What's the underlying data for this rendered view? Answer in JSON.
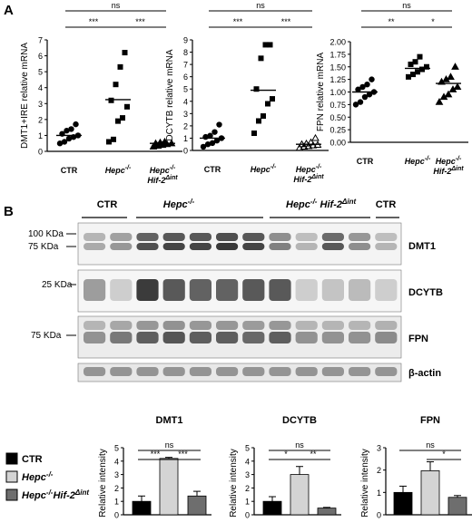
{
  "panels": {
    "a": "A",
    "b": "B"
  },
  "lines": {
    "a": "DMT1+IRE",
    "b": "DCYTB",
    "c": "FPN"
  },
  "chart_data": [
    {
      "type": "scatter",
      "ylabel": "DMT1+IRE relative mRNA",
      "ylim": [
        0,
        7
      ],
      "yticks": [
        "0",
        "1",
        "2",
        "3",
        "4",
        "5",
        "6",
        "7"
      ],
      "groups": [
        {
          "name": "CTR",
          "mean": 1.0,
          "points": [
            0.5,
            0.6,
            0.8,
            0.9,
            1.0,
            1.1,
            1.3,
            1.4,
            1.7
          ],
          "shape": "circle"
        },
        {
          "name": "Hepc-/-",
          "mean": 3.25,
          "points": [
            0.6,
            0.75,
            1.9,
            2.1,
            2.8,
            3.2,
            4.2,
            5.3,
            6.2
          ],
          "shape": "square"
        },
        {
          "name": "Hepc-/-Hif-2Δint",
          "mean": 0.5,
          "points": [
            0.3,
            0.35,
            0.4,
            0.45,
            0.5,
            0.5,
            0.55,
            0.6
          ],
          "shape": "triangle"
        }
      ],
      "significance": [
        {
          "from": 0,
          "to": 2,
          "label": "ns",
          "level": 2
        },
        {
          "from": 0,
          "to": 1,
          "label": "***",
          "level": 1
        },
        {
          "from": 1,
          "to": 2,
          "label": "***",
          "level": 1
        }
      ]
    },
    {
      "type": "scatter",
      "ylabel": "DCYTB relative mRNA",
      "ylim": [
        0,
        9
      ],
      "yticks": [
        "0",
        "1",
        "2",
        "3",
        "4",
        "5",
        "6",
        "7",
        "8",
        "9"
      ],
      "groups": [
        {
          "name": "CTR",
          "mean": 1.0,
          "points": [
            0.3,
            0.5,
            0.6,
            0.8,
            1.0,
            1.1,
            1.2,
            1.5,
            2.1
          ],
          "shape": "circle"
        },
        {
          "name": "Hepc-/-",
          "mean": 4.9,
          "points": [
            1.4,
            2.4,
            2.8,
            3.8,
            4.2,
            5.0,
            7.5,
            8.6,
            8.6
          ],
          "shape": "square"
        },
        {
          "name": "Hepc-/-Hif-2Δint",
          "mean": 0.5,
          "points": [
            0.2,
            0.3,
            0.35,
            0.4,
            0.45,
            0.5,
            0.55,
            0.65,
            1.0
          ],
          "shape": "triangle"
        }
      ],
      "significance": [
        {
          "from": 0,
          "to": 2,
          "label": "ns",
          "level": 2
        },
        {
          "from": 0,
          "to": 1,
          "label": "***",
          "level": 1
        },
        {
          "from": 1,
          "to": 2,
          "label": "***",
          "level": 1
        }
      ]
    },
    {
      "type": "scatter",
      "ylabel": "FPN relative mRNA",
      "ylim": [
        0,
        2.0
      ],
      "yticks": [
        "0.00",
        "0.25",
        "0.50",
        "0.75",
        "1.00",
        "1.25",
        "1.50",
        "1.75",
        "2.00"
      ],
      "groups": [
        {
          "name": "CTR",
          "mean": 1.0,
          "points": [
            0.75,
            0.8,
            0.9,
            0.95,
            1.0,
            1.05,
            1.1,
            1.15,
            1.25
          ],
          "shape": "circle"
        },
        {
          "name": "Hepc-/-",
          "mean": 1.47,
          "points": [
            1.3,
            1.35,
            1.4,
            1.45,
            1.5,
            1.55,
            1.6,
            1.7
          ],
          "shape": "square"
        },
        {
          "name": "Hepc-/-Hif-2Δint",
          "mean": 1.17,
          "points": [
            0.8,
            0.9,
            0.95,
            1.05,
            1.1,
            1.2,
            1.25,
            1.3,
            1.5
          ],
          "shape": "triangle"
        }
      ],
      "significance": [
        {
          "from": 0,
          "to": 2,
          "label": "ns",
          "level": 2
        },
        {
          "from": 0,
          "to": 1,
          "label": "**",
          "level": 1
        },
        {
          "from": 1,
          "to": 2,
          "label": "*",
          "level": 1
        }
      ]
    },
    {
      "type": "bar",
      "title": "DMT1",
      "ylabel": "Relative intensity",
      "ylim": [
        0,
        5
      ],
      "yticks": [
        "0",
        "1",
        "2",
        "3",
        "4",
        "5"
      ],
      "categories": [
        "CTR",
        "Hepc-/-",
        "Hepc-/-Hif-2Δint"
      ],
      "values": [
        1.0,
        4.2,
        1.4
      ],
      "errors": [
        0.4,
        0.08,
        0.35
      ],
      "significance": [
        {
          "from": 0,
          "to": 2,
          "label": "ns",
          "level": 2
        },
        {
          "from": 0,
          "to": 1,
          "label": "***",
          "level": 1
        },
        {
          "from": 1,
          "to": 2,
          "label": "***",
          "level": 1
        }
      ]
    },
    {
      "type": "bar",
      "title": "DCYTB",
      "ylabel": "Relative intensity",
      "ylim": [
        0,
        5
      ],
      "yticks": [
        "0",
        "1",
        "2",
        "3",
        "4",
        "5"
      ],
      "categories": [
        "CTR",
        "Hepc-/-",
        "Hepc-/-Hif-2Δint"
      ],
      "values": [
        1.0,
        3.0,
        0.5
      ],
      "errors": [
        0.35,
        0.6,
        0.05
      ],
      "significance": [
        {
          "from": 0,
          "to": 2,
          "label": "ns",
          "level": 2
        },
        {
          "from": 0,
          "to": 1,
          "label": "*",
          "level": 1
        },
        {
          "from": 1,
          "to": 2,
          "label": "**",
          "level": 1
        }
      ]
    },
    {
      "type": "bar",
      "title": "FPN",
      "ylabel": "Relative intensity",
      "ylim": [
        0,
        3
      ],
      "yticks": [
        "0",
        "1",
        "2",
        "3"
      ],
      "categories": [
        "CTR",
        "Hepc-/-",
        "Hepc-/-Hif-2Δint"
      ],
      "values": [
        1.0,
        1.97,
        0.78
      ],
      "errors": [
        0.28,
        0.4,
        0.08
      ],
      "significance": [
        {
          "from": 0,
          "to": 2,
          "label": "ns",
          "level": 2
        },
        {
          "from": 1,
          "to": 2,
          "label": "*",
          "level": 1
        }
      ]
    }
  ],
  "group_labels": {
    "ctr": "CTR",
    "hepc": "Hepc",
    "hepc_sup": "-/-",
    "hif": "Hif-2",
    "hif_sup": "Δint"
  },
  "blot": {
    "header_groups": [
      "CTR",
      "Hepc",
      "Hepc",
      "Hif-2",
      "CTR"
    ],
    "header_sups": [
      "-/-",
      "-/-",
      "Δint"
    ],
    "markers": [
      "100 KDa",
      "75 KDa",
      "25 KDa",
      "75 KDa"
    ],
    "labels": [
      "DMT1",
      "DCYTB",
      "FPN",
      "β-actin"
    ]
  },
  "legend": [
    {
      "label": "CTR",
      "color": "#000000"
    },
    {
      "label": "Hepc",
      "sup": "-/-",
      "color": "#d4d4d4"
    },
    {
      "label": "Hepc",
      "sup": "-/-",
      "label2": "Hif-2",
      "sup2": "Δint",
      "color": "#6e6e6e"
    }
  ]
}
